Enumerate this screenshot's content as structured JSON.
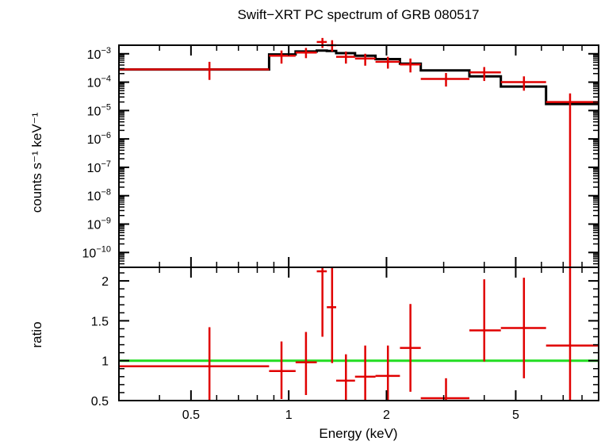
{
  "chart_data": [
    {
      "type": "line",
      "title": "Swift−XRT PC spectrum of GRB 080517",
      "ylabel": "counts s⁻¹ keV⁻¹",
      "xscale": "log",
      "yscale": "log",
      "xlim": [
        0.3,
        9.0
      ],
      "ylim": [
        3e-11,
        0.002
      ],
      "ytick_labels": [
        {
          "mant": "10",
          "exp": "−3",
          "value": 0.001
        },
        {
          "mant": "10",
          "exp": "−4",
          "value": 0.0001
        },
        {
          "mant": "10",
          "exp": "−5",
          "value": 1e-05
        },
        {
          "mant": "10",
          "exp": "−6",
          "value": 1e-06
        },
        {
          "mant": "10",
          "exp": "−7",
          "value": 1e-07
        },
        {
          "mant": "10",
          "exp": "−8",
          "value": 1e-08
        },
        {
          "mant": "10",
          "exp": "−9",
          "value": 1e-09
        },
        {
          "mant": "10",
          "exp": "−10",
          "value": 1e-10
        }
      ],
      "series": [
        {
          "color": "#e00000",
          "points": [
            {
              "xlo": 0.3,
              "xhi": 0.87,
              "x": 0.57,
              "y": 0.00028,
              "ylo": 0.00012,
              "yhi": 0.00052
            },
            {
              "xlo": 0.87,
              "xhi": 1.05,
              "x": 0.95,
              "y": 0.00085,
              "ylo": 0.00045,
              "yhi": 0.0013
            },
            {
              "xlo": 1.05,
              "xhi": 1.22,
              "x": 1.13,
              "y": 0.0011,
              "ylo": 0.0007,
              "yhi": 0.0016
            },
            {
              "xlo": 1.22,
              "xhi": 1.31,
              "x": 1.27,
              "y": 0.0026,
              "ylo": 0.0016,
              "yhi": 0.0036
            },
            {
              "xlo": 1.31,
              "xhi": 1.4,
              "x": 1.36,
              "y": 0.002,
              "ylo": 0.0012,
              "yhi": 0.003
            },
            {
              "xlo": 1.4,
              "xhi": 1.6,
              "x": 1.5,
              "y": 0.00078,
              "ylo": 0.00045,
              "yhi": 0.0012
            },
            {
              "xlo": 1.6,
              "xhi": 1.85,
              "x": 1.72,
              "y": 0.00068,
              "ylo": 0.00038,
              "yhi": 0.001
            },
            {
              "xlo": 1.85,
              "xhi": 2.2,
              "x": 2.02,
              "y": 0.00052,
              "ylo": 0.0003,
              "yhi": 0.00078
            },
            {
              "xlo": 2.2,
              "xhi": 2.55,
              "x": 2.37,
              "y": 0.00042,
              "ylo": 0.00022,
              "yhi": 0.00068
            },
            {
              "xlo": 2.55,
              "xhi": 3.6,
              "x": 3.05,
              "y": 0.00013,
              "ylo": 7e-05,
              "yhi": 0.00021
            },
            {
              "xlo": 3.6,
              "xhi": 4.5,
              "x": 4.0,
              "y": 0.00022,
              "ylo": 0.00011,
              "yhi": 0.00034
            },
            {
              "xlo": 4.5,
              "xhi": 6.2,
              "x": 5.3,
              "y": 0.0001,
              "ylo": 5e-05,
              "yhi": 0.00016
            },
            {
              "xlo": 6.2,
              "xhi": 9.0,
              "x": 7.35,
              "y": 2e-05,
              "ylo": 3e-11,
              "yhi": 4e-05
            }
          ]
        },
        {
          "color": "#000000",
          "steps": [
            {
              "xlo": 0.3,
              "xhi": 0.87,
              "y": 0.00028
            },
            {
              "xlo": 0.87,
              "xhi": 1.05,
              "y": 0.00095
            },
            {
              "xlo": 1.05,
              "xhi": 1.22,
              "y": 0.0012
            },
            {
              "xlo": 1.22,
              "xhi": 1.31,
              "y": 0.0013
            },
            {
              "xlo": 1.31,
              "xhi": 1.4,
              "y": 0.00125
            },
            {
              "xlo": 1.4,
              "xhi": 1.6,
              "y": 0.00105
            },
            {
              "xlo": 1.6,
              "xhi": 1.85,
              "y": 0.00085
            },
            {
              "xlo": 1.85,
              "xhi": 2.2,
              "y": 0.00065
            },
            {
              "xlo": 2.2,
              "xhi": 2.55,
              "y": 0.00045
            },
            {
              "xlo": 2.55,
              "xhi": 3.6,
              "y": 0.00026
            },
            {
              "xlo": 3.6,
              "xhi": 4.5,
              "y": 0.00016
            },
            {
              "xlo": 4.5,
              "xhi": 6.2,
              "y": 7e-05
            },
            {
              "xlo": 6.2,
              "xhi": 9.0,
              "y": 1.7e-05
            }
          ]
        }
      ]
    },
    {
      "type": "line",
      "xlabel": "Energy (keV)",
      "ylabel": "ratio",
      "xscale": "log",
      "yscale": "linear",
      "xlim": [
        0.3,
        9.0
      ],
      "ylim": [
        0.5,
        2.17
      ],
      "xticks": [
        {
          "label": "0.5",
          "value": 0.5
        },
        {
          "label": "1",
          "value": 1
        },
        {
          "label": "2",
          "value": 2
        },
        {
          "label": "5",
          "value": 5
        }
      ],
      "yticks": [
        {
          "label": "0.5",
          "value": 0.5
        },
        {
          "label": "1",
          "value": 1
        },
        {
          "label": "1.5",
          "value": 1.5
        },
        {
          "label": "2",
          "value": 2
        }
      ],
      "reference_line": {
        "y": 1,
        "color": "#22dd22"
      },
      "series": [
        {
          "color": "#e00000",
          "points": [
            {
              "xlo": 0.3,
              "xhi": 0.87,
              "x": 0.57,
              "y": 0.93,
              "ylo": 0.5,
              "yhi": 1.42
            },
            {
              "xlo": 0.87,
              "xhi": 1.05,
              "x": 0.95,
              "y": 0.87,
              "ylo": 0.52,
              "yhi": 1.24
            },
            {
              "xlo": 1.05,
              "xhi": 1.22,
              "x": 1.13,
              "y": 0.98,
              "ylo": 0.57,
              "yhi": 1.36
            },
            {
              "xlo": 1.22,
              "xhi": 1.31,
              "x": 1.27,
              "y": 2.12,
              "ylo": 1.3,
              "yhi": 2.17
            },
            {
              "xlo": 1.31,
              "xhi": 1.4,
              "x": 1.36,
              "y": 1.67,
              "ylo": 0.97,
              "yhi": 2.17
            },
            {
              "xlo": 1.4,
              "xhi": 1.6,
              "x": 1.5,
              "y": 0.75,
              "ylo": 0.5,
              "yhi": 1.08
            },
            {
              "xlo": 1.6,
              "xhi": 1.85,
              "x": 1.72,
              "y": 0.8,
              "ylo": 0.5,
              "yhi": 1.19
            },
            {
              "xlo": 1.85,
              "xhi": 2.2,
              "x": 2.02,
              "y": 0.81,
              "ylo": 0.5,
              "yhi": 1.19
            },
            {
              "xlo": 2.2,
              "xhi": 2.55,
              "x": 2.37,
              "y": 1.16,
              "ylo": 0.61,
              "yhi": 1.71
            },
            {
              "xlo": 2.55,
              "xhi": 3.6,
              "x": 3.05,
              "y": 0.53,
              "ylo": 0.5,
              "yhi": 0.78
            },
            {
              "xlo": 3.6,
              "xhi": 4.5,
              "x": 4.0,
              "y": 1.38,
              "ylo": 0.99,
              "yhi": 2.02
            },
            {
              "xlo": 4.5,
              "xhi": 6.2,
              "x": 5.3,
              "y": 1.41,
              "ylo": 0.78,
              "yhi": 2.04
            },
            {
              "xlo": 6.2,
              "xhi": 9.0,
              "x": 7.35,
              "y": 1.19,
              "ylo": 0.5,
              "yhi": 2.17
            }
          ]
        }
      ]
    }
  ]
}
